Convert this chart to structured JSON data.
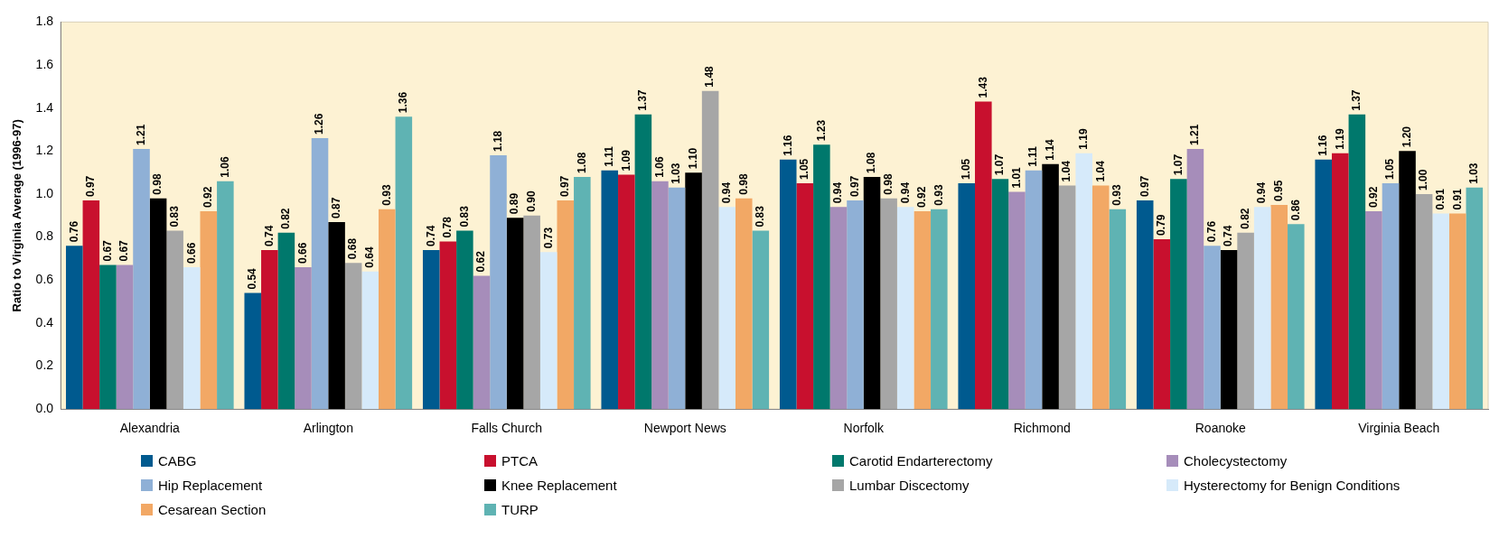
{
  "chart_data": {
    "type": "bar",
    "ylabel": "Ratio to Virginia Average (1996-97)",
    "categories": [
      "Alexandria",
      "Arlington",
      "Falls Church",
      "Newport News",
      "Norfolk",
      "Richmond",
      "Roanoke",
      "Virginia Beach"
    ],
    "ylim": [
      0,
      1.8
    ],
    "yticks": [
      {
        "value": 0,
        "label": "0.0"
      },
      0.2,
      0.4,
      0.6,
      0.8,
      {
        "value": 1,
        "label": "1.0"
      },
      1.2,
      1.4,
      1.6,
      1.8
    ],
    "grid": false,
    "legend": "bottom",
    "series": [
      {
        "name": "CABG",
        "color": "#005a8f",
        "values": [
          0.76,
          0.54,
          0.74,
          1.11,
          1.16,
          1.05,
          0.97,
          1.16
        ],
        "value_labels": [
          "0.76",
          "0.54",
          "0.74",
          "1.11",
          "1.16",
          "1.05",
          "0.97",
          "1.16"
        ]
      },
      {
        "name": "PTCA",
        "color": "#c8102e",
        "values": [
          0.97,
          0.74,
          0.78,
          1.09,
          1.05,
          1.43,
          0.79,
          1.19
        ],
        "value_labels": [
          "0.97",
          "0.74",
          "0.78",
          "1.09",
          "1.05",
          "1.43",
          "0.79",
          "1.19"
        ]
      },
      {
        "name": "Carotid Endarterectomy",
        "color": "#00786c",
        "values": [
          0.67,
          0.82,
          0.83,
          1.37,
          1.23,
          1.07,
          1.07,
          1.37
        ],
        "value_labels": [
          "0.67",
          "0.82",
          "0.83",
          "1.37",
          "1.23",
          "1.07",
          "1.07",
          "1.37"
        ]
      },
      {
        "name": "Cholecystectomy",
        "color": "#a68dba",
        "values": [
          0.67,
          0.66,
          0.62,
          1.06,
          0.94,
          1.01,
          1.21,
          0.92
        ],
        "value_labels": [
          "0.67",
          "0.66",
          "0.62",
          "1.06",
          "0.94",
          "1.01",
          "1.21",
          "0.92"
        ]
      },
      {
        "name": "Hip Replacement",
        "color": "#8fb0d6",
        "values": [
          1.21,
          1.26,
          1.18,
          1.03,
          0.97,
          1.11,
          0.76,
          1.05
        ],
        "value_labels": [
          "1.21",
          "1.26",
          "1.18",
          "1.03",
          "0.97",
          "1.11",
          "0.76",
          "1.05"
        ]
      },
      {
        "name": "Knee Replacement",
        "color": "#000000",
        "values": [
          0.98,
          0.87,
          0.89,
          1.1,
          1.08,
          1.14,
          0.74,
          1.2
        ],
        "value_labels": [
          "0.98",
          "0.87",
          "0.89",
          "1.10",
          "1.08",
          "1.14",
          "0.74",
          "1.20"
        ]
      },
      {
        "name": "Lumbar Discectomy",
        "color": "#a6a6a6",
        "values": [
          0.83,
          0.68,
          0.9,
          1.48,
          0.98,
          1.04,
          0.82,
          1.0
        ],
        "value_labels": [
          "0.83",
          "0.68",
          "0.90",
          "1.48",
          "0.98",
          "1.04",
          "0.82",
          "1.00"
        ]
      },
      {
        "name": "Hysterectomy for Benign Conditions",
        "color": "#d6eafa",
        "values": [
          0.66,
          0.64,
          0.73,
          0.94,
          0.94,
          1.19,
          0.94,
          0.91
        ],
        "value_labels": [
          "0.66",
          "0.64",
          "0.73",
          "0.94",
          "0.94",
          "1.19",
          "0.94",
          "0.91"
        ]
      },
      {
        "name": "Cesarean Section",
        "color": "#f2a865",
        "values": [
          0.92,
          0.93,
          0.97,
          0.98,
          0.92,
          1.04,
          0.95,
          0.91
        ],
        "value_labels": [
          "0.92",
          "0.93",
          "0.97",
          "0.98",
          "0.92",
          "1.04",
          "0.95",
          "0.91"
        ]
      },
      {
        "name": "TURP",
        "color": "#5fb3b3",
        "values": [
          1.06,
          1.36,
          1.08,
          0.83,
          0.93,
          0.93,
          0.86,
          1.03
        ],
        "value_labels": [
          "1.06",
          "1.36",
          "1.08",
          "0.83",
          "0.93",
          "0.93",
          "0.86",
          "1.03"
        ]
      }
    ]
  }
}
